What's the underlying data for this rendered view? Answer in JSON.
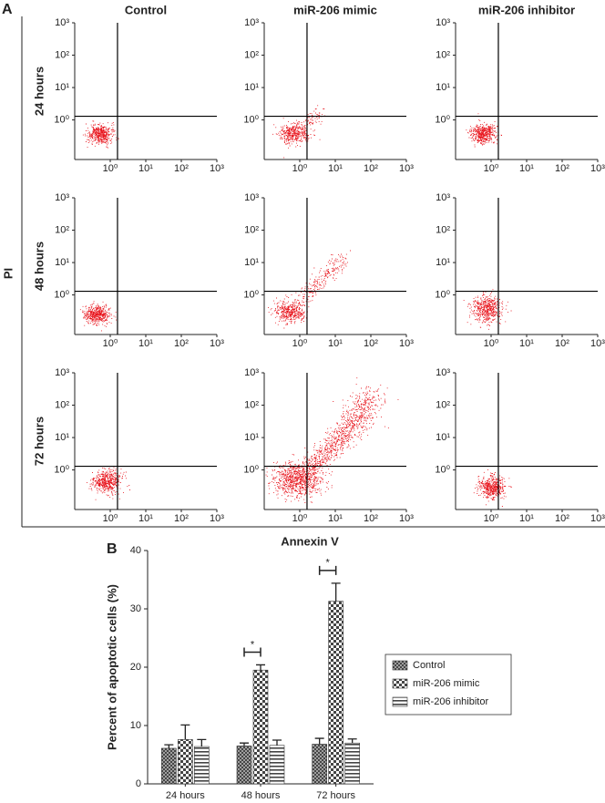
{
  "flow": {
    "panel_label": "A",
    "columns": [
      "Control",
      "miR-206 mimic",
      "miR-206 inhibitor"
    ],
    "rows": [
      "24 hours",
      "48 hours",
      "72 hours"
    ],
    "xlabel": "Annexin V",
    "ylabel": "PI",
    "xscale": "log",
    "yscale": "log",
    "xlim": [
      0.1,
      1000
    ],
    "ylim": [
      0.06,
      1000
    ],
    "xticks": [
      {
        "value": 1,
        "label": "10⁰"
      },
      {
        "value": 10,
        "label": "10¹"
      },
      {
        "value": 100,
        "label": "10²"
      },
      {
        "value": 1000,
        "label": "10³"
      }
    ],
    "yticks": [
      {
        "value": 1,
        "label": "10⁰"
      },
      {
        "value": 10,
        "label": "10¹"
      },
      {
        "value": 100,
        "label": "10²"
      },
      {
        "value": 1000,
        "label": "10³"
      }
    ],
    "gate": {
      "x": 1.6,
      "y": 1.3
    }
  },
  "chart_data": {
    "type": "bar",
    "panel_label": "B",
    "ylabel": "Percent of apoptotic cells (%)",
    "categories": [
      "24 hours",
      "48 hours",
      "72 hours"
    ],
    "series": [
      {
        "name": "Control",
        "pattern": "crosshatch",
        "values": [
          6.1,
          6.5,
          6.8
        ],
        "errors": [
          0.6,
          0.5,
          1.0
        ]
      },
      {
        "name": "miR-206 mimic",
        "pattern": "checker",
        "values": [
          7.6,
          19.5,
          31.3
        ],
        "errors": [
          2.5,
          0.9,
          3.1
        ]
      },
      {
        "name": "miR-206 inhibitor",
        "pattern": "hstripes",
        "values": [
          6.4,
          6.6,
          7.0
        ],
        "errors": [
          1.2,
          0.9,
          0.7
        ]
      }
    ],
    "ylim": [
      0,
      40
    ],
    "yticks": [
      0,
      10,
      20,
      30,
      40
    ],
    "annotations": [
      {
        "text": "*",
        "category": "48 hours"
      },
      {
        "text": "*",
        "category": "72 hours"
      }
    ],
    "legend": "right"
  }
}
